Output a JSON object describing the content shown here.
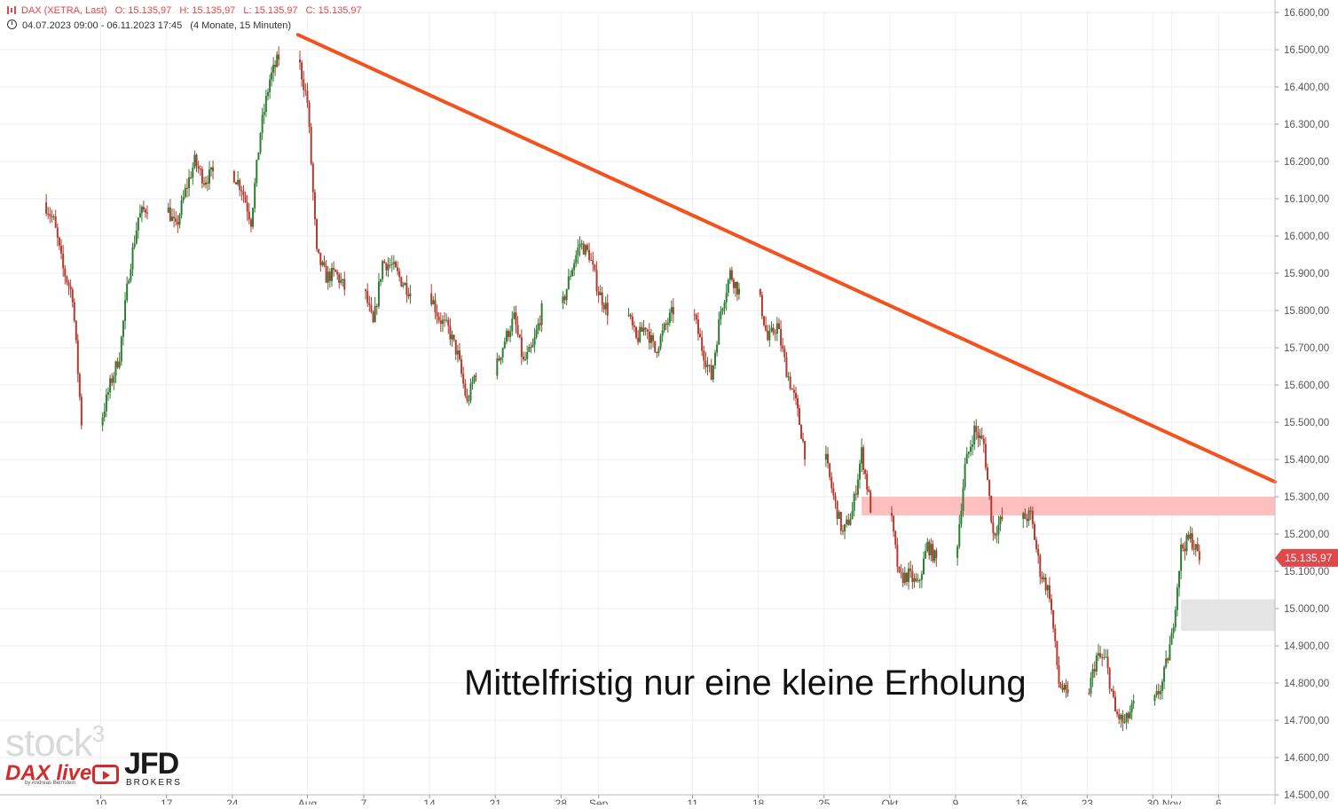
{
  "info": {
    "instrument": "DAX (XETRA, Last)",
    "open": "O: 15.135,97",
    "high": "H: 15.135,97",
    "low": "L: 15.135,97",
    "close": "C: 15.135,97",
    "range": "04.07.2023 09:00 - 06.11.2023 17:45",
    "period": "(4 Monate, 15 Minuten)"
  },
  "annotation": "Mittelfristig nur eine kleine Erholung",
  "logos": {
    "stock3": "stock",
    "stock3_sup": "3",
    "dax_live": "DAX live",
    "dax_live_sub": "by Andreas Bernstein",
    "jfd": "JFD",
    "jfd_sub": "BROKERS"
  },
  "colors": {
    "up": "#2e7d32",
    "down": "#b23a2e",
    "trendline": "#f4511e",
    "resistance_zone": "#ffbcbc",
    "gap_zone": "#e3e3e3",
    "price_label": "#e0484b"
  },
  "chart_data": {
    "type": "candlestick",
    "ylim": [
      14500,
      16600
    ],
    "xlim": [
      "2023-07-04",
      "2023-11-12"
    ],
    "y_ticks": [
      {
        "v": 16600,
        "label": "16.600,00"
      },
      {
        "v": 16500,
        "label": "16.500,00"
      },
      {
        "v": 16400,
        "label": "16.400,00"
      },
      {
        "v": 16300,
        "label": "16.300,00"
      },
      {
        "v": 16200,
        "label": "16.200,00"
      },
      {
        "v": 16100,
        "label": "16.100,00"
      },
      {
        "v": 16000,
        "label": "16.000,00"
      },
      {
        "v": 15900,
        "label": "15.900,00"
      },
      {
        "v": 15800,
        "label": "15.800,00"
      },
      {
        "v": 15700,
        "label": "15.700,00"
      },
      {
        "v": 15600,
        "label": "15.600,00"
      },
      {
        "v": 15500,
        "label": "15.500,00"
      },
      {
        "v": 15400,
        "label": "15.400,00"
      },
      {
        "v": 15300,
        "label": "15.300,00"
      },
      {
        "v": 15200,
        "label": "15.200,00"
      },
      {
        "v": 15100,
        "label": "15.100,00"
      },
      {
        "v": 15000,
        "label": "15.000,00"
      },
      {
        "v": 14900,
        "label": "14.900,00"
      },
      {
        "v": 14800,
        "label": "14.800,00"
      },
      {
        "v": 14700,
        "label": "14.700,00"
      },
      {
        "v": 14600,
        "label": "14.600,00"
      },
      {
        "v": 14500,
        "label": "14.500,00"
      }
    ],
    "x_ticks": [
      {
        "date": "2023-07-10",
        "label": "10"
      },
      {
        "date": "2023-07-17",
        "label": "17"
      },
      {
        "date": "2023-07-24",
        "label": "24"
      },
      {
        "date": "2023-08-01",
        "label": "Aug"
      },
      {
        "date": "2023-08-07",
        "label": "7"
      },
      {
        "date": "2023-08-14",
        "label": "14"
      },
      {
        "date": "2023-08-21",
        "label": "21"
      },
      {
        "date": "2023-08-28",
        "label": "28"
      },
      {
        "date": "2023-09-01",
        "label": "Sep"
      },
      {
        "date": "2023-09-11",
        "label": "11"
      },
      {
        "date": "2023-09-18",
        "label": "18"
      },
      {
        "date": "2023-09-25",
        "label": "25"
      },
      {
        "date": "2023-10-02",
        "label": "Okt"
      },
      {
        "date": "2023-10-09",
        "label": "9"
      },
      {
        "date": "2023-10-16",
        "label": "16"
      },
      {
        "date": "2023-10-23",
        "label": "23"
      },
      {
        "date": "2023-10-30",
        "label": "30"
      },
      {
        "date": "2023-11-01",
        "label": "Nov"
      },
      {
        "date": "2023-11-06",
        "label": "6"
      }
    ],
    "price_path": [
      [
        "2023-07-04",
        16090
      ],
      [
        "2023-07-05",
        16040
      ],
      [
        "2023-07-06",
        15910
      ],
      [
        "2023-07-07",
        15840
      ],
      [
        "2023-07-10",
        15500
      ],
      [
        "2023-07-11",
        15600
      ],
      [
        "2023-07-12",
        15680
      ],
      [
        "2023-07-13",
        15900
      ],
      [
        "2023-07-14",
        16050
      ],
      [
        "2023-07-17",
        16080
      ],
      [
        "2023-07-18",
        16020
      ],
      [
        "2023-07-19",
        16120
      ],
      [
        "2023-07-20",
        16200
      ],
      [
        "2023-07-21",
        16150
      ],
      [
        "2023-07-24",
        16170
      ],
      [
        "2023-07-25",
        16130
      ],
      [
        "2023-07-26",
        16040
      ],
      [
        "2023-07-27",
        16280
      ],
      [
        "2023-07-28",
        16420
      ],
      [
        "2023-07-31",
        16480
      ],
      [
        "2023-08-01",
        16360
      ],
      [
        "2023-08-02",
        15950
      ],
      [
        "2023-08-03",
        15890
      ],
      [
        "2023-08-04",
        15900
      ],
      [
        "2023-08-07",
        15860
      ],
      [
        "2023-08-08",
        15760
      ],
      [
        "2023-08-09",
        15930
      ],
      [
        "2023-08-10",
        15920
      ],
      [
        "2023-08-11",
        15880
      ],
      [
        "2023-08-14",
        15850
      ],
      [
        "2023-08-15",
        15780
      ],
      [
        "2023-08-16",
        15750
      ],
      [
        "2023-08-17",
        15680
      ],
      [
        "2023-08-18",
        15550
      ],
      [
        "2023-08-21",
        15640
      ],
      [
        "2023-08-22",
        15720
      ],
      [
        "2023-08-23",
        15780
      ],
      [
        "2023-08-24",
        15660
      ],
      [
        "2023-08-25",
        15700
      ],
      [
        "2023-08-28",
        15800
      ],
      [
        "2023-08-29",
        15900
      ],
      [
        "2023-08-30",
        15980
      ],
      [
        "2023-08-31",
        15950
      ],
      [
        "2023-09-01",
        15850
      ],
      [
        "2023-09-04",
        15800
      ],
      [
        "2023-09-05",
        15720
      ],
      [
        "2023-09-06",
        15760
      ],
      [
        "2023-09-07",
        15690
      ],
      [
        "2023-09-08",
        15750
      ],
      [
        "2023-09-11",
        15800
      ],
      [
        "2023-09-12",
        15700
      ],
      [
        "2023-09-13",
        15620
      ],
      [
        "2023-09-14",
        15800
      ],
      [
        "2023-09-15",
        15900
      ],
      [
        "2023-09-18",
        15850
      ],
      [
        "2023-09-19",
        15720
      ],
      [
        "2023-09-20",
        15760
      ],
      [
        "2023-09-21",
        15640
      ],
      [
        "2023-09-22",
        15550
      ],
      [
        "2023-09-25",
        15420
      ],
      [
        "2023-09-26",
        15300
      ],
      [
        "2023-09-27",
        15200
      ],
      [
        "2023-09-28",
        15260
      ],
      [
        "2023-09-29",
        15420
      ],
      [
        "2023-10-02",
        15270
      ],
      [
        "2023-10-03",
        15080
      ],
      [
        "2023-10-04",
        15090
      ],
      [
        "2023-10-05",
        15060
      ],
      [
        "2023-10-06",
        15170
      ],
      [
        "2023-10-09",
        15130
      ],
      [
        "2023-10-10",
        15380
      ],
      [
        "2023-10-11",
        15480
      ],
      [
        "2023-10-12",
        15440
      ],
      [
        "2023-10-13",
        15200
      ],
      [
        "2023-10-16",
        15240
      ],
      [
        "2023-10-17",
        15250
      ],
      [
        "2023-10-18",
        15100
      ],
      [
        "2023-10-19",
        15040
      ],
      [
        "2023-10-20",
        14800
      ],
      [
        "2023-10-23",
        14760
      ],
      [
        "2023-10-24",
        14870
      ],
      [
        "2023-10-25",
        14860
      ],
      [
        "2023-10-26",
        14720
      ],
      [
        "2023-10-27",
        14690
      ],
      [
        "2023-10-30",
        14740
      ],
      [
        "2023-10-31",
        14800
      ],
      [
        "2023-11-01",
        14920
      ],
      [
        "2023-11-02",
        15160
      ],
      [
        "2023-11-03",
        15190
      ],
      [
        "2023-11-06",
        15136
      ]
    ],
    "trendline": {
      "from": [
        "2023-07-31",
        16540
      ],
      "to": [
        "2023-11-12",
        15340
      ]
    },
    "zones": [
      {
        "name": "resistance",
        "from": "2023-09-29",
        "to": "2023-11-12",
        "y": [
          15250,
          15300
        ]
      },
      {
        "name": "gap",
        "from": "2023-11-02",
        "to": "2023-11-12",
        "y": [
          14940,
          15025
        ]
      }
    ],
    "last_price": {
      "value": 15135.97,
      "label": "15.135,97"
    }
  }
}
